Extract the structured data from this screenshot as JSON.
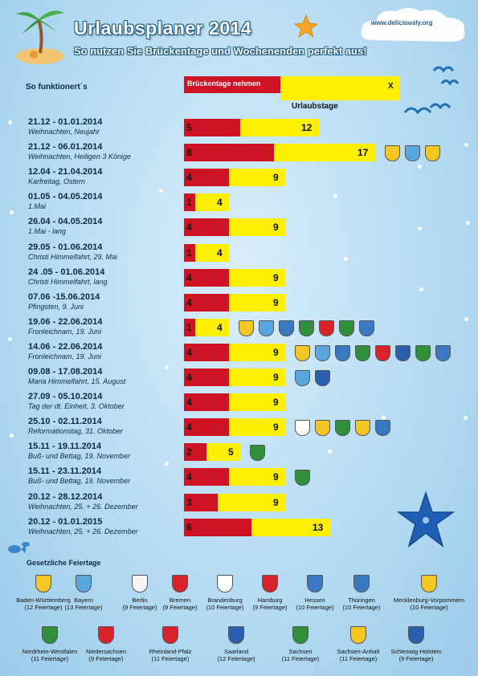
{
  "header": {
    "title": "Urlaubsplaner 2014",
    "subtitle": "So nutzen Sie Brückentage und Wochenenden perfekt aus!",
    "website": "www.deliciously.org"
  },
  "legend": {
    "howto": "So funktionert´s",
    "bridge_label": "Brückentage nehmen",
    "vacation_label": "X Urlaubstage",
    "bridge_color": "#cf1324",
    "vacation_color": "#ffef00"
  },
  "chart_data": {
    "type": "bar",
    "rows": [
      {
        "dates": "21.12 - 01.01.2014",
        "occasion": "Weihnachten, Neujahr",
        "bridge_days": 5,
        "total_days": 12,
        "crests": []
      },
      {
        "dates": "21.12 - 06.01.2014",
        "occasion": "Weihnachten,  Heiligen 3 Könige",
        "bridge_days": 8,
        "total_days": 17,
        "crests": [
          "baden-wuerttemberg",
          "bayern",
          "sachsen-anhalt"
        ]
      },
      {
        "dates": "12.04 - 21.04.2014",
        "occasion": "Karfreitag, Ostern",
        "bridge_days": 4,
        "total_days": 9,
        "crests": []
      },
      {
        "dates": "01.05 - 04.05.2014",
        "occasion": "1.Mai",
        "bridge_days": 1,
        "total_days": 4,
        "crests": []
      },
      {
        "dates": "26.04 - 04.05.2014",
        "occasion": "1.Mai - lang",
        "bridge_days": 4,
        "total_days": 9,
        "crests": []
      },
      {
        "dates": "29.05 - 01.06.2014",
        "occasion": "Christi Himmelfahrt, 29. Mai",
        "bridge_days": 1,
        "total_days": 4,
        "crests": []
      },
      {
        "dates": "24 .05 - 01.06.2014",
        "occasion": "Christi Himmelfahrt, lang",
        "bridge_days": 4,
        "total_days": 9,
        "crests": []
      },
      {
        "dates": "07.06 -15.06.2014",
        "occasion": "Pfingsten, 9. Juni",
        "bridge_days": 4,
        "total_days": 9,
        "crests": []
      },
      {
        "dates": "19.06 - 22.06.2014",
        "occasion": "Fronleichnam, 19. Juni",
        "bridge_days": 1,
        "total_days": 4,
        "crests": [
          "baden-wuerttemberg",
          "bayern",
          "hessen",
          "nordrhein-westfalen",
          "rheinland-pfalz",
          "sachsen",
          "thueringen"
        ]
      },
      {
        "dates": "14.06 - 22.06.2014",
        "occasion": "Fronleichnam, 19. Juni",
        "bridge_days": 4,
        "total_days": 9,
        "crests": [
          "baden-wuerttemberg",
          "bayern",
          "hessen",
          "nordrhein-westfalen",
          "rheinland-pfalz",
          "saarland",
          "sachsen",
          "thueringen"
        ]
      },
      {
        "dates": "09.08 - 17.08.2014",
        "occasion": "Maria Himmelfahrt, 15. August",
        "bridge_days": 4,
        "total_days": 9,
        "crests": [
          "bayern",
          "saarland"
        ]
      },
      {
        "dates": "27.09 - 05.10.2014",
        "occasion": "Tag der dt. Einheit, 3. Oktober",
        "bridge_days": 4,
        "total_days": 9,
        "crests": []
      },
      {
        "dates": "25.10 - 02.11.2014",
        "occasion": "Reformationstag, 31. Oktober",
        "bridge_days": 4,
        "total_days": 9,
        "crests": [
          "brandenburg",
          "mecklenburg-vorpommern",
          "sachsen",
          "sachsen-anhalt",
          "thueringen"
        ]
      },
      {
        "dates": "15.11 - 19.11.2014",
        "occasion": "Buß- und Bettag, 19. November",
        "bridge_days": 2,
        "total_days": 5,
        "crests": [
          "sachsen"
        ]
      },
      {
        "dates": "15.11 - 23.11.2014",
        "occasion": "Buß- und Bettag, 19. November",
        "bridge_days": 4,
        "total_days": 9,
        "crests": [
          "sachsen"
        ]
      },
      {
        "dates": "20.12 - 28.12.2014",
        "occasion": "Weihnachten, 25. + 26. Dezember",
        "bridge_days": 3,
        "total_days": 9,
        "crests": []
      },
      {
        "dates": "20.12 - 01.01.2015",
        "occasion": "Weihnachten, 25. + 26. Dezember",
        "bridge_days": 6,
        "total_days": 13,
        "crests": []
      }
    ]
  },
  "holidays_section": {
    "title": "Gesetzliche Feiertage",
    "states": [
      {
        "id": "baden-wuerttemberg",
        "name": "Baden-Württemberg",
        "count": "(12 Feiertage)"
      },
      {
        "id": "bayern",
        "name": "Bayern",
        "count": "(13 Feiertage)"
      },
      {
        "id": "berlin",
        "name": "Berlin",
        "count": "(9 Feiertage)"
      },
      {
        "id": "bremen",
        "name": "Bremen",
        "count": "(9 Feiertage)"
      },
      {
        "id": "brandenburg",
        "name": "Brandenburg",
        "count": "(10 Feiertage)"
      },
      {
        "id": "hamburg",
        "name": "Hamburg",
        "count": "(9 Feiertage)"
      },
      {
        "id": "hessen",
        "name": "Hessen",
        "count": "(10 Feiertage)"
      },
      {
        "id": "thueringen",
        "name": "Thüringen",
        "count": "(10 Feiertage)"
      },
      {
        "id": "mecklenburg-vorpommern",
        "name": "Mecklenburg-Vorpommern",
        "count": "(10 Feiertage)"
      },
      {
        "id": "nordrhein-westfalen",
        "name": "Nordrhein-Westfalen",
        "count": "(11 Feiertage)"
      },
      {
        "id": "niedersachsen",
        "name": "Niedersachsen",
        "count": "(9 Feiertage)"
      },
      {
        "id": "rheinland-pfalz",
        "name": "Rheinland-Pfalz",
        "count": "(11 Feiertage)"
      },
      {
        "id": "saarland",
        "name": "Saarland",
        "count": "(12 Feiertage)"
      },
      {
        "id": "sachsen",
        "name": "Sachsen",
        "count": "(11 Feiertage)"
      },
      {
        "id": "sachsen-anhalt",
        "name": "Sachsen-Anhalt",
        "count": "(11 Feiertage)"
      },
      {
        "id": "schleswig-holstein",
        "name": "Schleswig-Holstein",
        "count": "(9 Feiertage)"
      }
    ]
  },
  "crest_colors": {
    "baden-wuerttemberg": "#f3c623",
    "bayern": "#5aa7e0",
    "berlin": "#f5f5f5",
    "bremen": "#d8232a",
    "brandenburg": "#ffffff",
    "hamburg": "#d8232a",
    "hessen": "#3a78c2",
    "thueringen": "#3a78c2",
    "mecklenburg-vorpommern": "#f3c623",
    "nordrhein-westfalen": "#2f8f3a",
    "niedersachsen": "#d8232a",
    "rheinland-pfalz": "#d8232a",
    "saarland": "#2a5fb0",
    "sachsen": "#2f8f3a",
    "sachsen-anhalt": "#f3c623",
    "schleswig-holstein": "#2a5fb0"
  }
}
